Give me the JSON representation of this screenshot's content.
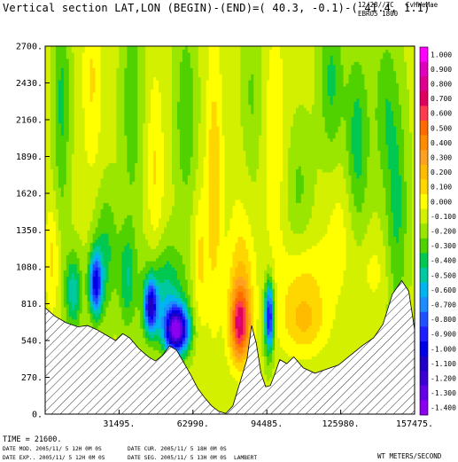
{
  "header": {
    "title": "Vertical section LAT,LON (BEGIN)-(END)=( 40.3, -0.1)-( 41.4,  1.1)",
    "date": "12/28//7C",
    "code": "CvHWeMae",
    "experiment": "EBRO5 1800"
  },
  "footer": {
    "time": "TIME =   21600.",
    "date_mod": "DATE MOD. 2005/11/ 5  12H 0M 0S",
    "date_cur": "DATE CUR. 2005/11/ 5  18H 0M 0S",
    "date_exp": "DATE EXP.. 2005/11/ 5  12H 0M 0S",
    "date_seg": "DATE SEG. 2005/11/ 5  13H 0M 0S",
    "projection": "LAMBERT",
    "units": "WT METERS/SECOND"
  },
  "chart_data": {
    "type": "heatmap",
    "title": "Vertical section LAT,LON (BEGIN)-(END)=( 40.3, -0.1)-( 41.4,  1.1)",
    "xlabel": "",
    "ylabel": "",
    "xlim": [
      0,
      157475
    ],
    "ylim": [
      0,
      2700
    ],
    "x_ticks": [
      {
        "value": 31495,
        "label": "31495."
      },
      {
        "value": 62990,
        "label": "62990."
      },
      {
        "value": 94485,
        "label": "94485."
      },
      {
        "value": 125980,
        "label": "125980."
      },
      {
        "value": 157475,
        "label": "157475."
      }
    ],
    "y_ticks": [
      {
        "value": 0,
        "label": "0."
      },
      {
        "value": 270,
        "label": "270."
      },
      {
        "value": 540,
        "label": "540."
      },
      {
        "value": 810,
        "label": "810."
      },
      {
        "value": 1080,
        "label": "1080."
      },
      {
        "value": 1350,
        "label": "1350."
      },
      {
        "value": 1620,
        "label": "1620."
      },
      {
        "value": 1890,
        "label": "1890."
      },
      {
        "value": 2160,
        "label": "2160."
      },
      {
        "value": 2430,
        "label": "2430."
      },
      {
        "value": 2700,
        "label": "2700."
      }
    ],
    "colorbar": {
      "units": "WT METERS/SECOND",
      "levels": [
        {
          "label": "1.000",
          "color": "#ff00ff"
        },
        {
          "label": "0.900",
          "color": "#e000c0"
        },
        {
          "label": "0.800",
          "color": "#e00090"
        },
        {
          "label": "0.700",
          "color": "#e00060"
        },
        {
          "label": "0.600",
          "color": "#ff3c50"
        },
        {
          "label": "0.500",
          "color": "#ff6a00"
        },
        {
          "label": "0.400",
          "color": "#ff8c00"
        },
        {
          "label": "0.300",
          "color": "#ffa020"
        },
        {
          "label": "0.200",
          "color": "#ffbb00"
        },
        {
          "label": "0.100",
          "color": "#ffd700"
        },
        {
          "label": "0.000",
          "color": "#ffff00"
        },
        {
          "label": "-0.100",
          "color": "#d2f000"
        },
        {
          "label": "-0.200",
          "color": "#9be600"
        },
        {
          "label": "-0.300",
          "color": "#50d200"
        },
        {
          "label": "-0.400",
          "color": "#00c850"
        },
        {
          "label": "-0.500",
          "color": "#00c8a0"
        },
        {
          "label": "-0.600",
          "color": "#00b4f0"
        },
        {
          "label": "-0.700",
          "color": "#1e8cff"
        },
        {
          "label": "-0.800",
          "color": "#1e50ff"
        },
        {
          "label": "-0.900",
          "color": "#1e1eff"
        },
        {
          "label": "-1.000",
          "color": "#0000e6"
        },
        {
          "label": "-1.100",
          "color": "#1e00c8"
        },
        {
          "label": "-1.200",
          "color": "#3c00d2"
        },
        {
          "label": "-1.300",
          "color": "#6400e6"
        },
        {
          "label": "-1.400",
          "color": "#8c00f0"
        }
      ]
    },
    "terrain": {
      "x": [
        0,
        4000,
        9000,
        14000,
        18000,
        22000,
        26000,
        30000,
        33000,
        36000,
        40000,
        44000,
        47000,
        50000,
        53000,
        56000,
        59000,
        62000,
        65000,
        68000,
        71000,
        74000,
        77000,
        80000,
        83000,
        86000,
        88000,
        90000,
        92000,
        94000,
        96000,
        98000,
        100000,
        103000,
        106000,
        110000,
        115000,
        120000,
        125000,
        130000,
        135000,
        140000,
        144000,
        148000,
        152000,
        155000,
        157475
      ],
      "height_m": [
        780,
        720,
        670,
        640,
        650,
        620,
        580,
        540,
        590,
        560,
        480,
        420,
        390,
        430,
        500,
        470,
        380,
        290,
        190,
        120,
        60,
        20,
        5,
        60,
        230,
        400,
        650,
        520,
        300,
        200,
        210,
        300,
        400,
        370,
        420,
        340,
        300,
        330,
        360,
        430,
        500,
        560,
        660,
        880,
        980,
        900,
        620
      ]
    },
    "features": [
      {
        "kind": "updraft",
        "center_x": 83000,
        "center_z": 650,
        "peak": 0.8
      },
      {
        "kind": "downdraft",
        "center_x": 55000,
        "center_z": 600,
        "peak": -1.2
      },
      {
        "kind": "downdraft",
        "center_x": 43000,
        "center_z": 780,
        "peak": -0.8
      },
      {
        "kind": "downdraft",
        "center_x": 20000,
        "center_z": 930,
        "peak": -0.8
      },
      {
        "kind": "downdraft",
        "center_x": 95000,
        "center_z": 720,
        "peak": -0.9
      },
      {
        "kind": "updraft",
        "center_x": 110000,
        "center_z": 900,
        "peak": 0.2
      }
    ]
  }
}
